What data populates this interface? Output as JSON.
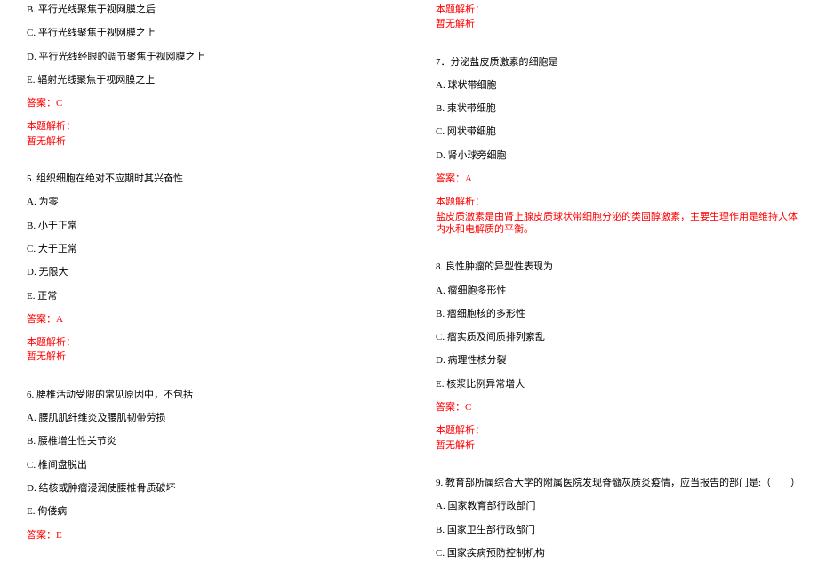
{
  "colors": {
    "text": "#000000",
    "accent": "#ff0000",
    "background": "#ffffff"
  },
  "typography": {
    "font_family": "SimSun",
    "font_size_pt": 8
  },
  "left": {
    "q4_opts": {
      "B": "B. 平行光线聚焦于视网膜之后",
      "C": "C. 平行光线聚焦于视网膜之上",
      "D": "D. 平行光线经眼的调节聚焦于视网膜之上",
      "E": "E. 辐射光线聚焦于视网膜之上"
    },
    "q4_answer": "答案：C",
    "q4_expl_label": "本题解析：",
    "q4_expl_body": "暂无解析",
    "q5_stem": "5. 组织细胞在绝对不应期时其兴奋性",
    "q5_opts": {
      "A": "A. 为零",
      "B": "B. 小于正常",
      "C": "C. 大于正常",
      "D": "D. 无限大",
      "E": "E. 正常"
    },
    "q5_answer": "答案：A",
    "q5_expl_label": "本题解析：",
    "q5_expl_body": "暂无解析",
    "q6_stem": "6. 腰椎活动受限的常见原因中，不包括",
    "q6_opts": {
      "A": "A. 腰肌肌纤维炎及腰肌韧带劳损",
      "B": "B. 腰椎增生性关节炎",
      "C": "C. 椎间盘脱出",
      "D": "D. 结核或肿瘤浸润使腰椎骨质破坏",
      "E": "E. 佝偻病"
    },
    "q6_answer": "答案：E"
  },
  "right": {
    "q6_expl_label": "本题解析：",
    "q6_expl_body": "暂无解析",
    "q7_stem": "7．分泌盐皮质激素的细胞是",
    "q7_opts": {
      "A": "A. 球状带细胞",
      "B": "B. 束状带细胞",
      "C": "C. 网状带细胞",
      "D": "D. 肾小球旁细胞"
    },
    "q7_answer": "答案：A",
    "q7_expl_label": "本题解析：",
    "q7_expl_body": "盐皮质激素是由肾上腺皮质球状带细胞分泌的类固醇激素，主要生理作用是维持人体内水和电解质的平衡。",
    "q8_stem": "8. 良性肿瘤的异型性表现为",
    "q8_opts": {
      "A": "A. 瘤细胞多形性",
      "B": "B. 瘤细胞核的多形性",
      "C": "C. 瘤实质及间质排列紊乱",
      "D": "D. 病理性核分裂",
      "E": "E. 核浆比例异常增大"
    },
    "q8_answer": "答案：C",
    "q8_expl_label": "本题解析：",
    "q8_expl_body": "暂无解析",
    "q9_stem": "9. 教育部所属综合大学的附属医院发现脊髓灰质炎疫情，应当报告的部门是:（　　）",
    "q9_opts": {
      "A": "A. 国家教育部行政部门",
      "B": "B. 国家卫生部行政部门",
      "C": "C. 国家疾病预防控制机构"
    }
  }
}
